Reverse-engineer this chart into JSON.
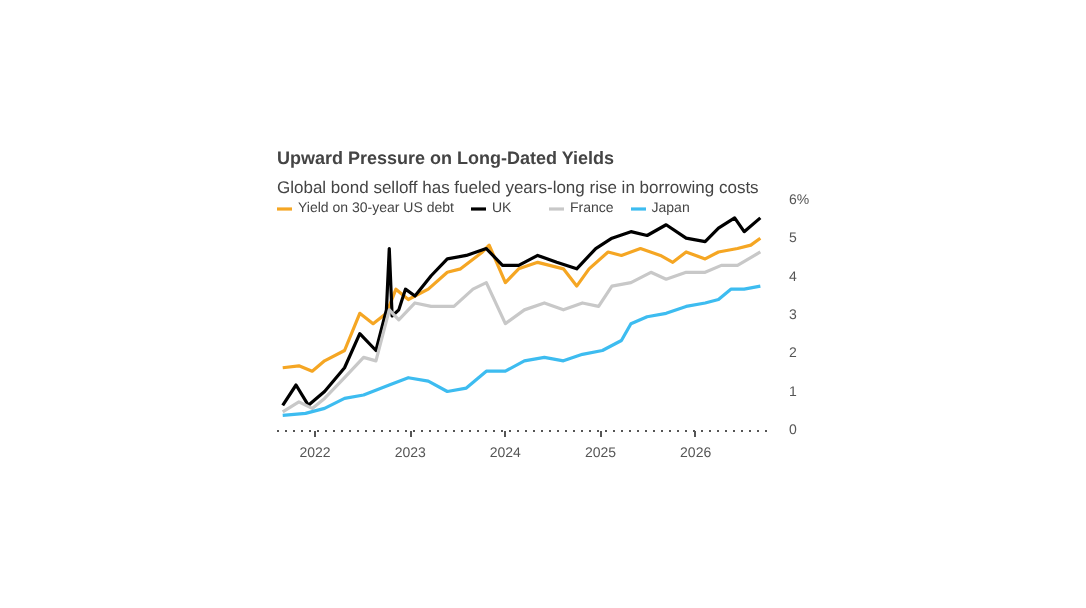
{
  "chart_data": {
    "type": "line",
    "title": "Upward Pressure on Long-Dated Yields",
    "subtitle": "Global bond selloff has fueled years-long rise in borrowing costs",
    "series": [
      {
        "name": "Yield on 30-year US debt",
        "color": "#f5a623",
        "x": [
          2021.66,
          2021.83,
          2021.97,
          2022.1,
          2022.31,
          2022.47,
          2022.61,
          2022.75,
          2022.85,
          2022.98,
          2023.19,
          2023.39,
          2023.53,
          2023.76,
          2023.83,
          2024.0,
          2024.14,
          2024.34,
          2024.61,
          2024.75,
          2024.88,
          2025.08,
          2025.22,
          2025.42,
          2025.63,
          2025.76,
          2025.9,
          2026.1,
          2026.24,
          2026.44,
          2026.58,
          2026.68
        ],
        "values": [
          1.65,
          1.7,
          1.56,
          1.83,
          2.1,
          3.07,
          2.8,
          3.07,
          3.7,
          3.43,
          3.7,
          4.14,
          4.23,
          4.67,
          4.85,
          3.87,
          4.23,
          4.4,
          4.23,
          3.78,
          4.23,
          4.67,
          4.58,
          4.76,
          4.58,
          4.4,
          4.67,
          4.49,
          4.67,
          4.76,
          4.85,
          5.03
        ]
      },
      {
        "name": "UK",
        "color": "#000000",
        "x": [
          2021.66,
          2021.8,
          2021.93,
          2022.1,
          2022.31,
          2022.47,
          2022.64,
          2022.75,
          2022.78,
          2022.81,
          2022.88,
          2022.95,
          2023.05,
          2023.22,
          2023.39,
          2023.59,
          2023.8,
          2023.97,
          2024.14,
          2024.34,
          2024.54,
          2024.75,
          2024.95,
          2025.12,
          2025.32,
          2025.49,
          2025.69,
          2025.9,
          2026.1,
          2026.24,
          2026.41,
          2026.51,
          2026.68
        ],
        "values": [
          0.67,
          1.2,
          0.67,
          1.03,
          1.65,
          2.54,
          2.1,
          3.16,
          4.76,
          3.0,
          3.16,
          3.7,
          3.52,
          4.05,
          4.49,
          4.58,
          4.76,
          4.32,
          4.32,
          4.58,
          4.4,
          4.23,
          4.76,
          5.03,
          5.2,
          5.1,
          5.38,
          5.03,
          4.94,
          5.29,
          5.56,
          5.2,
          5.56
        ]
      },
      {
        "name": "France",
        "color": "#c8c8c8",
        "x": [
          2021.66,
          2021.83,
          2021.97,
          2022.1,
          2022.31,
          2022.51,
          2022.64,
          2022.78,
          2022.88,
          2023.05,
          2023.22,
          2023.46,
          2023.66,
          2023.8,
          2024.0,
          2024.2,
          2024.41,
          2024.61,
          2024.81,
          2024.98,
          2025.12,
          2025.32,
          2025.53,
          2025.69,
          2025.9,
          2026.1,
          2026.27,
          2026.44,
          2026.68
        ],
        "values": [
          0.5,
          0.76,
          0.59,
          0.85,
          1.39,
          1.92,
          1.83,
          3.16,
          2.9,
          3.34,
          3.25,
          3.25,
          3.7,
          3.87,
          2.8,
          3.16,
          3.34,
          3.16,
          3.34,
          3.25,
          3.78,
          3.87,
          4.14,
          3.96,
          4.14,
          4.14,
          4.32,
          4.32,
          4.67
        ]
      },
      {
        "name": "Japan",
        "color": "#3dbcf0",
        "x": [
          2021.66,
          2021.9,
          2022.1,
          2022.31,
          2022.51,
          2022.78,
          2022.98,
          2023.19,
          2023.39,
          2023.59,
          2023.8,
          2024.0,
          2024.2,
          2024.41,
          2024.61,
          2024.81,
          2025.02,
          2025.22,
          2025.32,
          2025.49,
          2025.69,
          2025.9,
          2026.1,
          2026.24,
          2026.37,
          2026.51,
          2026.68
        ],
        "values": [
          0.41,
          0.46,
          0.59,
          0.85,
          0.94,
          1.2,
          1.39,
          1.3,
          1.03,
          1.12,
          1.56,
          1.56,
          1.83,
          1.92,
          1.83,
          2.0,
          2.1,
          2.36,
          2.8,
          2.98,
          3.07,
          3.25,
          3.34,
          3.43,
          3.7,
          3.7,
          3.78
        ]
      }
    ],
    "xlim": [
      2021.6,
      2026.75
    ],
    "xticks": [
      2022,
      2023,
      2024,
      2025,
      2026
    ],
    "ylim": [
      0,
      6
    ],
    "yticks": [
      0,
      1,
      2,
      3,
      4,
      5,
      {
        "value": 6,
        "label": "6%"
      }
    ],
    "legend": "top left",
    "grid": false
  }
}
